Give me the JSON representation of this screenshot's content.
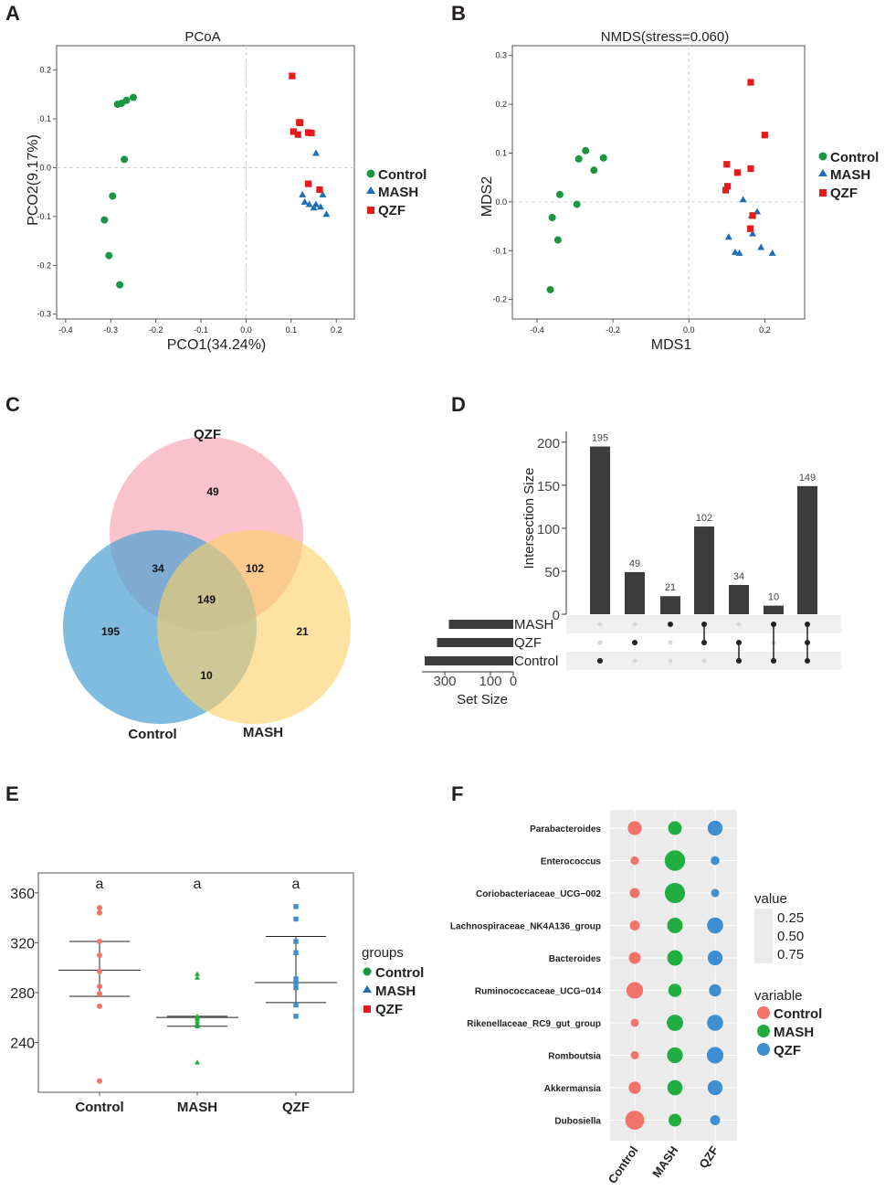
{
  "panel_labels": [
    "A",
    "B",
    "C",
    "D",
    "E",
    "F"
  ],
  "colors": {
    "Control_scatter": "#1a9641",
    "MASH_scatter": "#1f6fb2",
    "QZF_scatter": "#e41a1c",
    "Control_E": "#f1736a",
    "MASH_E": "#1fae3f",
    "QZF_E": "#3d8fd1",
    "venn_QZF": "#f9b4be",
    "venn_Control": "#4fa2d3",
    "venn_MASH": "#fbd169",
    "upset_bar": "#3c3c3c",
    "bubble_bg": "#ebebeb"
  },
  "panelA": {
    "legend": [
      {
        "label": "Control",
        "shape": "circle"
      },
      {
        "label": "MASH",
        "shape": "triangle"
      },
      {
        "label": "QZF",
        "shape": "square"
      }
    ]
  },
  "panelB": {
    "legend": [
      {
        "label": "Control",
        "shape": "circle"
      },
      {
        "label": "MASH",
        "shape": "triangle"
      },
      {
        "label": "QZF",
        "shape": "square"
      }
    ]
  },
  "panelC": {
    "sets": [
      "QZF",
      "Control",
      "MASH"
    ]
  },
  "panelE": {
    "legend_title": "groups",
    "legend": [
      {
        "label": "Control",
        "shape": "circle"
      },
      {
        "label": "MASH",
        "shape": "triangle"
      },
      {
        "label": "QZF",
        "shape": "square"
      }
    ]
  },
  "panelF": {
    "size_legend_title": "value",
    "size_legend_items": [
      "0.25",
      "0.50",
      "0.75"
    ],
    "color_legend_title": "variable",
    "color_legend": [
      "Control",
      "MASH",
      "QZF"
    ]
  },
  "chart_data": [
    {
      "id": "A",
      "type": "scatter",
      "title": "PCoA",
      "xlabel": "PCO1(34.24%)",
      "ylabel": "PCO2(9.17%)",
      "xlim": [
        -0.42,
        0.24
      ],
      "ylim": [
        -0.31,
        0.25
      ],
      "xticks": [
        -0.4,
        -0.3,
        -0.2,
        -0.1,
        0.0,
        0.1,
        0.2
      ],
      "xtick_labels": [
        "-0.4",
        "-0.3",
        "-0.2",
        "-0.1",
        "0.0",
        "0.1",
        "0.2"
      ],
      "yticks": [
        -0.3,
        -0.2,
        -0.1,
        0.0,
        0.1,
        0.2
      ],
      "ytick_labels": [
        "-0.3",
        "-0.2",
        "-0.1",
        "0.0",
        "0.1",
        "0.2"
      ],
      "series": [
        {
          "name": "Control",
          "points": [
            [
              -0.285,
              0.13
            ],
            [
              -0.276,
              0.132
            ],
            [
              -0.265,
              0.138
            ],
            [
              -0.25,
              0.144
            ],
            [
              -0.27,
              0.017
            ],
            [
              -0.296,
              -0.058
            ],
            [
              -0.314,
              -0.107
            ],
            [
              -0.304,
              -0.18
            ],
            [
              -0.28,
              -0.24
            ]
          ]
        },
        {
          "name": "MASH",
          "points": [
            [
              0.155,
              0.03
            ],
            [
              0.125,
              -0.055
            ],
            [
              0.17,
              -0.055
            ],
            [
              0.13,
              -0.07
            ],
            [
              0.14,
              -0.075
            ],
            [
              0.155,
              -0.075
            ],
            [
              0.165,
              -0.08
            ],
            [
              0.15,
              -0.082
            ],
            [
              0.178,
              -0.095
            ]
          ]
        },
        {
          "name": "QZF",
          "points": [
            [
              0.102,
              0.188
            ],
            [
              0.118,
              0.093
            ],
            [
              0.12,
              0.092
            ],
            [
              0.138,
              0.072
            ],
            [
              0.145,
              0.071
            ],
            [
              0.105,
              0.074
            ],
            [
              0.115,
              0.068
            ],
            [
              0.138,
              -0.033
            ],
            [
              0.163,
              -0.045
            ]
          ]
        }
      ]
    },
    {
      "id": "B",
      "type": "scatter",
      "title": "NMDS(stress=0.060)",
      "xlabel": "MDS1",
      "ylabel": "MDS2",
      "xlim": [
        -0.465,
        0.305
      ],
      "ylim": [
        -0.24,
        0.32
      ],
      "xticks": [
        -0.4,
        -0.2,
        0.0,
        0.2
      ],
      "xtick_labels": [
        "-0.4",
        "-0.2",
        "0.0",
        "0.2"
      ],
      "yticks": [
        -0.2,
        -0.1,
        0.0,
        0.1,
        0.2,
        0.3
      ],
      "ytick_labels": [
        "-0.2",
        "-0.1",
        "0.0",
        "0.1",
        "0.2",
        "0.3"
      ],
      "series": [
        {
          "name": "Control",
          "points": [
            [
              -0.272,
              0.105
            ],
            [
              -0.29,
              0.088
            ],
            [
              -0.225,
              0.09
            ],
            [
              -0.25,
              0.065
            ],
            [
              -0.34,
              0.015
            ],
            [
              -0.295,
              -0.005
            ],
            [
              -0.36,
              -0.032
            ],
            [
              -0.345,
              -0.078
            ],
            [
              -0.365,
              -0.18
            ]
          ]
        },
        {
          "name": "MASH",
          "points": [
            [
              0.143,
              0.005
            ],
            [
              0.18,
              -0.02
            ],
            [
              0.165,
              -0.028
            ],
            [
              0.168,
              -0.065
            ],
            [
              0.105,
              -0.072
            ],
            [
              0.19,
              -0.093
            ],
            [
              0.122,
              -0.103
            ],
            [
              0.133,
              -0.105
            ],
            [
              0.22,
              -0.105
            ]
          ]
        },
        {
          "name": "QZF",
          "points": [
            [
              0.163,
              0.245
            ],
            [
              0.2,
              0.137
            ],
            [
              0.1,
              0.077
            ],
            [
              0.163,
              0.068
            ],
            [
              0.128,
              0.06
            ],
            [
              0.102,
              0.032
            ],
            [
              0.097,
              0.024
            ],
            [
              0.168,
              -0.028
            ],
            [
              0.162,
              -0.055
            ]
          ]
        }
      ]
    },
    {
      "id": "C",
      "type": "venn",
      "sets": [
        "QZF",
        "Control",
        "MASH"
      ],
      "regions": {
        "QZF_only": 49,
        "Control_only": 195,
        "MASH_only": 21,
        "QZF_Control": 34,
        "QZF_MASH": 102,
        "Control_MASH": 10,
        "all": 149
      }
    },
    {
      "id": "D",
      "type": "bar",
      "subtype": "upset",
      "ylabel": "Intersection Size",
      "ylim": [
        0,
        220
      ],
      "yticks": [
        0,
        50,
        100,
        150,
        200
      ],
      "ytick_labels": [
        "0",
        "50",
        "100",
        "150",
        "200"
      ],
      "sets": [
        "MASH",
        "QZF",
        "Control"
      ],
      "intersections": [
        {
          "members": [
            "Control"
          ],
          "value": 195
        },
        {
          "members": [
            "QZF"
          ],
          "value": 49
        },
        {
          "members": [
            "MASH"
          ],
          "value": 21
        },
        {
          "members": [
            "MASH",
            "QZF"
          ],
          "value": 102
        },
        {
          "members": [
            "QZF",
            "Control"
          ],
          "value": 34
        },
        {
          "members": [
            "MASH",
            "Control"
          ],
          "value": 10
        },
        {
          "members": [
            "MASH",
            "QZF",
            "Control"
          ],
          "value": 149
        }
      ],
      "set_size_label": "Set Size",
      "set_size_ticks": [
        300,
        100,
        0
      ],
      "set_size_tick_labels": [
        "300",
        "100",
        "0"
      ],
      "set_sizes": [
        {
          "set": "MASH",
          "value": 282
        },
        {
          "set": "QZF",
          "value": 334
        },
        {
          "set": "Control",
          "value": 388
        }
      ]
    },
    {
      "id": "E",
      "type": "scatter",
      "subtype": "dot-errorbar",
      "categories": [
        "Control",
        "MASH",
        "QZF"
      ],
      "ylim": [
        200,
        376
      ],
      "yticks": [
        240,
        280,
        320,
        360
      ],
      "ytick_labels": [
        "240",
        "280",
        "320",
        "360"
      ],
      "significance": [
        "a",
        "a",
        "a"
      ],
      "groups": [
        {
          "name": "Control",
          "points": [
            348,
            344,
            321,
            310,
            297,
            285,
            279,
            269,
            209
          ],
          "mean": 298,
          "upper": 321,
          "lower": 277
        },
        {
          "name": "MASH",
          "points": [
            295,
            292,
            261,
            260,
            259,
            257,
            255,
            253,
            224
          ],
          "mean": 260,
          "upper": 261,
          "lower": 253
        },
        {
          "name": "QZF",
          "points": [
            349,
            339,
            321,
            312,
            291,
            288,
            284,
            270,
            261
          ],
          "mean": 288,
          "upper": 325,
          "lower": 272
        }
      ]
    },
    {
      "id": "F",
      "type": "scatter",
      "subtype": "bubble",
      "x_categories": [
        "Control",
        "MASH",
        "QZF"
      ],
      "y_categories": [
        "Parabacteroides",
        "Enterococcus",
        "Coriobacteriaceae_UCG−002",
        "Lachnospiraceae_NK4A136_group",
        "Bacteroides",
        "Ruminococcaceae_UCG−014",
        "Rikenellaceae_RC9_gut_group",
        "Romboutsia",
        "Akkermansia",
        "Dubosiella"
      ],
      "values": [
        [
          0.32,
          0.3,
          0.38
        ],
        [
          0.07,
          0.85,
          0.08
        ],
        [
          0.12,
          0.82,
          0.06
        ],
        [
          0.12,
          0.42,
          0.46
        ],
        [
          0.2,
          0.42,
          0.38
        ],
        [
          0.5,
          0.28,
          0.22
        ],
        [
          0.06,
          0.48,
          0.46
        ],
        [
          0.06,
          0.44,
          0.5
        ],
        [
          0.22,
          0.4,
          0.38
        ],
        [
          0.7,
          0.25,
          0.12
        ]
      ]
    }
  ]
}
